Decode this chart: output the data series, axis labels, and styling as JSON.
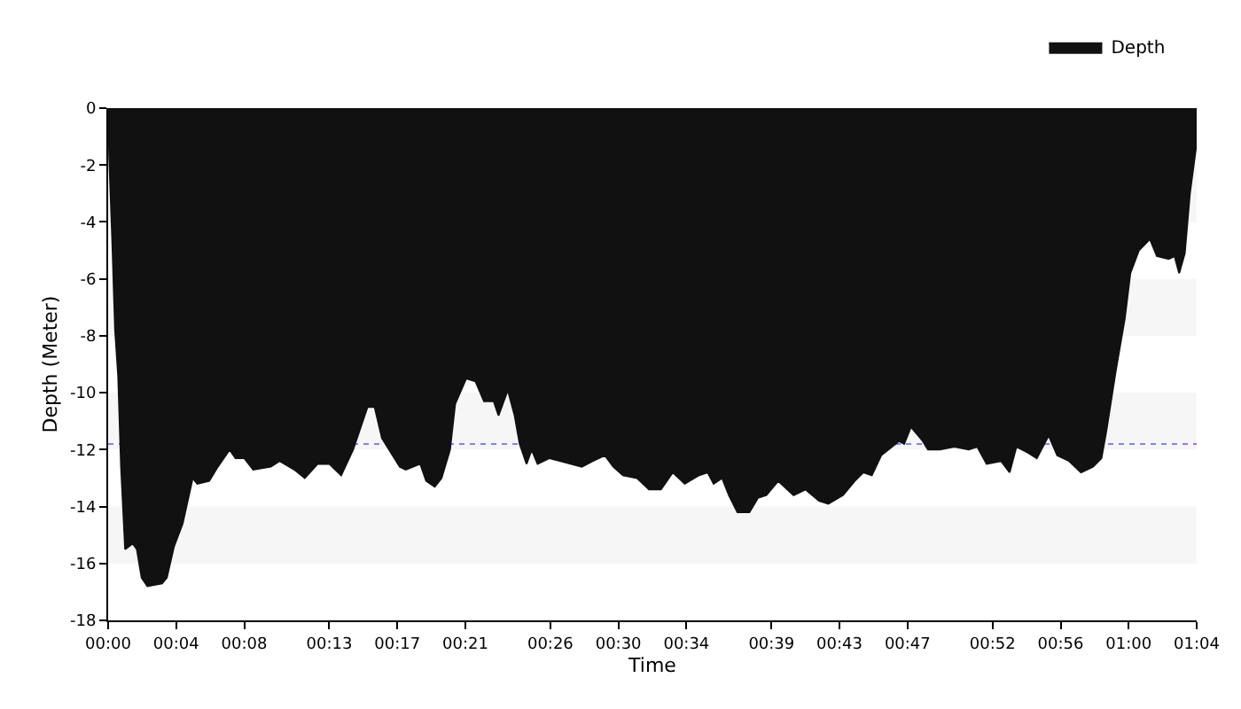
{
  "chart_data": {
    "type": "area",
    "xlabel": "Time",
    "ylabel": "Depth (Meter)",
    "series": [
      {
        "name": "Depth",
        "color": "#111111",
        "x": [
          0,
          0.07,
          0.24,
          0.41,
          0.59,
          0.76,
          1.0,
          1.45,
          1.69,
          1.97,
          2.31,
          3.17,
          3.45,
          3.87,
          4.38,
          4.97,
          5.24,
          5.94,
          6.45,
          7.14,
          7.49,
          8.0,
          8.53,
          9.56,
          10.08,
          10.94,
          11.56,
          12.32,
          13.0,
          13.7,
          14.4,
          15.25,
          15.67,
          16.1,
          17.15,
          17.5,
          18.35,
          18.7,
          19.2,
          19.6,
          20.1,
          20.4,
          21.05,
          21.6,
          22.1,
          22.67,
          22.95,
          23.5,
          23.9,
          24.2,
          24.6,
          24.9,
          25.25,
          25.95,
          26.6,
          27.85,
          28.5,
          29.2,
          29.7,
          30.27,
          31.1,
          31.8,
          32.5,
          33.2,
          33.9,
          34.75,
          35.25,
          35.6,
          36.1,
          36.5,
          37.0,
          37.7,
          38.2,
          38.7,
          39.4,
          40.3,
          41.0,
          41.8,
          42.34,
          43.2,
          43.9,
          44.4,
          44.9,
          45.45,
          46.5,
          46.8,
          47.2,
          47.9,
          48.2,
          48.9,
          49.75,
          50.6,
          51.1,
          51.65,
          52.5,
          53.0,
          53.4,
          54.07,
          54.6,
          55.3,
          55.8,
          56.5,
          57.2,
          57.9,
          58.4,
          58.7,
          59.25,
          59.77,
          60.1,
          60.6,
          61.25,
          61.66,
          62.35,
          62.7,
          62.97,
          63.3,
          63.6,
          64
        ],
        "values": [
          0,
          -1.8,
          -4.6,
          -7.8,
          -9.4,
          -12.6,
          -15.5,
          -15.3,
          -15.5,
          -16.5,
          -16.8,
          -16.7,
          -16.5,
          -15.4,
          -14.6,
          -13.0,
          -13.2,
          -13.1,
          -12.6,
          -12.0,
          -12.3,
          -12.3,
          -12.7,
          -12.6,
          -12.4,
          -12.7,
          -13.0,
          -12.5,
          -12.5,
          -12.9,
          -12.0,
          -10.5,
          -10.5,
          -11.6,
          -12.6,
          -12.7,
          -12.5,
          -13.1,
          -13.3,
          -13.0,
          -12.0,
          -10.4,
          -9.5,
          -9.6,
          -10.3,
          -10.3,
          -10.8,
          -9.9,
          -10.8,
          -11.8,
          -12.5,
          -12.0,
          -12.5,
          -12.3,
          -12.4,
          -12.6,
          -12.4,
          -12.2,
          -12.6,
          -12.9,
          -13.0,
          -13.4,
          -13.4,
          -12.8,
          -13.2,
          -12.9,
          -12.8,
          -13.2,
          -13.0,
          -13.6,
          -14.2,
          -14.2,
          -13.7,
          -13.6,
          -13.1,
          -13.6,
          -13.4,
          -13.8,
          -13.9,
          -13.6,
          -13.1,
          -12.8,
          -12.9,
          -12.2,
          -11.7,
          -11.8,
          -11.2,
          -11.7,
          -12.0,
          -12.0,
          -11.9,
          -12.0,
          -11.9,
          -12.5,
          -12.4,
          -12.8,
          -11.9,
          -12.1,
          -12.3,
          -11.5,
          -12.2,
          -12.4,
          -12.8,
          -12.6,
          -12.3,
          -11.3,
          -9.2,
          -7.4,
          -5.8,
          -5.0,
          -4.6,
          -5.2,
          -5.3,
          -5.2,
          -5.8,
          -5.1,
          -3.0,
          -1.2
        ]
      }
    ],
    "xlim": [
      0,
      64
    ],
    "xticks": [
      {
        "value": 0,
        "label": "00:00"
      },
      {
        "value": 4,
        "label": "00:04"
      },
      {
        "value": 8,
        "label": "00:08"
      },
      {
        "value": 13,
        "label": "00:13"
      },
      {
        "value": 17,
        "label": "00:17"
      },
      {
        "value": 21,
        "label": "00:21"
      },
      {
        "value": 26,
        "label": "00:26"
      },
      {
        "value": 30,
        "label": "00:30"
      },
      {
        "value": 34,
        "label": "00:34"
      },
      {
        "value": 39,
        "label": "00:39"
      },
      {
        "value": 43,
        "label": "00:43"
      },
      {
        "value": 47,
        "label": "00:47"
      },
      {
        "value": 52,
        "label": "00:52"
      },
      {
        "value": 56,
        "label": "00:56"
      },
      {
        "value": 60,
        "label": "01:00"
      },
      {
        "value": 64,
        "label": "01:04"
      }
    ],
    "ylim": [
      -18,
      0
    ],
    "yticks": [
      -18,
      -16,
      -14,
      -12,
      -10,
      -8,
      -6,
      -4,
      -2,
      0
    ],
    "grid": false,
    "legend": "top right",
    "ref_lines": [
      {
        "axis": "y",
        "value": -11.8,
        "color": "#8080ff",
        "line_style": "dotted"
      }
    ],
    "bands": [
      {
        "axis": "y",
        "from": -2,
        "to": -4,
        "color": "#f6f6f6"
      },
      {
        "axis": "y",
        "from": -6,
        "to": -8,
        "color": "#f6f6f6"
      },
      {
        "axis": "y",
        "from": -10,
        "to": -12,
        "color": "#f6f6f6"
      },
      {
        "axis": "y",
        "from": -14,
        "to": -16,
        "color": "#f6f6f6"
      }
    ]
  }
}
